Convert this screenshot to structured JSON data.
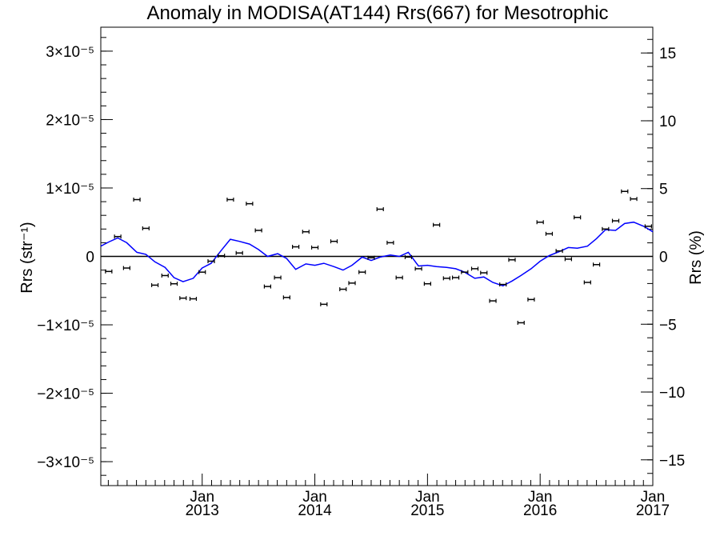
{
  "chart_data": {
    "type": "scatter",
    "title": "Anomaly in MODISA(AT144) Rrs(667) for Mesotrophic",
    "ylabel_left": "Rrs (str⁻¹)",
    "ylabel_right": "Rrs (%)",
    "y_left_ticks": [
      {
        "value": 3e-05,
        "label": "3×10⁻⁵"
      },
      {
        "value": 2e-05,
        "label": "2×10⁻⁵"
      },
      {
        "value": 1e-05,
        "label": "1×10⁻⁵"
      },
      {
        "value": 0,
        "label": "0"
      },
      {
        "value": -1e-05,
        "label": "−1×10⁻⁵"
      },
      {
        "value": -2e-05,
        "label": "−2×10⁻⁵"
      },
      {
        "value": -3e-05,
        "label": "−3×10⁻⁵"
      }
    ],
    "y_right_ticks": [
      {
        "value": 15,
        "label": "15"
      },
      {
        "value": 10,
        "label": "10"
      },
      {
        "value": 5,
        "label": "5"
      },
      {
        "value": 0,
        "label": "0"
      },
      {
        "value": -5,
        "label": "−5"
      },
      {
        "value": -10,
        "label": "−10"
      },
      {
        "value": -15,
        "label": "−15"
      }
    ],
    "x_ticks": [
      {
        "value": 2013.0,
        "month": "Jan",
        "year": "2013"
      },
      {
        "value": 2014.0,
        "month": "Jan",
        "year": "2014"
      },
      {
        "value": 2015.0,
        "month": "Jan",
        "year": "2015"
      },
      {
        "value": 2016.0,
        "month": "Jan",
        "year": "2016"
      },
      {
        "value": 2017.0,
        "month": "Jan",
        "year": "2017"
      }
    ],
    "xlim": [
      2012.1,
      2017.0
    ],
    "ylim_left": [
      -3.35e-05,
      3.35e-05
    ],
    "ylim_right": [
      -16.9,
      16.9
    ],
    "zero_line": true,
    "colors": {
      "points": "#000000",
      "line": "#0000ff"
    },
    "points": [
      {
        "x": 2012.17,
        "y": -2.2e-06
      },
      {
        "x": 2012.25,
        "y": 2.9e-06
      },
      {
        "x": 2012.33,
        "y": -1.7e-06
      },
      {
        "x": 2012.42,
        "y": 8.3e-06
      },
      {
        "x": 2012.5,
        "y": 4.1e-06
      },
      {
        "x": 2012.58,
        "y": -4.2e-06
      },
      {
        "x": 2012.67,
        "y": -2.8e-06
      },
      {
        "x": 2012.75,
        "y": -4e-06
      },
      {
        "x": 2012.83,
        "y": -6.1e-06
      },
      {
        "x": 2012.92,
        "y": -6.2e-06
      },
      {
        "x": 2013.0,
        "y": -2.3e-06
      },
      {
        "x": 2013.08,
        "y": -7e-07
      },
      {
        "x": 2013.17,
        "y": 1e-07
      },
      {
        "x": 2013.25,
        "y": 8.3e-06
      },
      {
        "x": 2013.33,
        "y": 5e-07
      },
      {
        "x": 2013.42,
        "y": 7.7e-06
      },
      {
        "x": 2013.5,
        "y": 3.8e-06
      },
      {
        "x": 2013.58,
        "y": -4.4e-06
      },
      {
        "x": 2013.67,
        "y": -3.1e-06
      },
      {
        "x": 2013.75,
        "y": -6e-06
      },
      {
        "x": 2013.83,
        "y": 1.4e-06
      },
      {
        "x": 2013.92,
        "y": 3.6e-06
      },
      {
        "x": 2014.0,
        "y": 1.3e-06
      },
      {
        "x": 2014.08,
        "y": -7e-06
      },
      {
        "x": 2014.17,
        "y": 2.2e-06
      },
      {
        "x": 2014.25,
        "y": -4.8e-06
      },
      {
        "x": 2014.33,
        "y": -3.9e-06
      },
      {
        "x": 2014.42,
        "y": -2.3e-06
      },
      {
        "x": 2014.5,
        "y": -2e-07
      },
      {
        "x": 2014.58,
        "y": 6.9e-06
      },
      {
        "x": 2014.67,
        "y": 2e-06
      },
      {
        "x": 2014.75,
        "y": -3.1e-06
      },
      {
        "x": 2014.83,
        "y": -1e-07
      },
      {
        "x": 2014.92,
        "y": -1.8e-06
      },
      {
        "x": 2015.0,
        "y": -4e-06
      },
      {
        "x": 2015.08,
        "y": 4.6e-06
      },
      {
        "x": 2015.17,
        "y": -3.2e-06
      },
      {
        "x": 2015.25,
        "y": -3.1e-06
      },
      {
        "x": 2015.33,
        "y": -2.3e-06
      },
      {
        "x": 2015.42,
        "y": -1.8e-06
      },
      {
        "x": 2015.5,
        "y": -2.4e-06
      },
      {
        "x": 2015.58,
        "y": -6.5e-06
      },
      {
        "x": 2015.67,
        "y": -4.1e-06
      },
      {
        "x": 2015.75,
        "y": -5e-07
      },
      {
        "x": 2015.83,
        "y": -9.7e-06
      },
      {
        "x": 2015.92,
        "y": -6.3e-06
      },
      {
        "x": 2016.0,
        "y": 5e-06
      },
      {
        "x": 2016.08,
        "y": 3.3e-06
      },
      {
        "x": 2016.17,
        "y": 8e-07
      },
      {
        "x": 2016.25,
        "y": -4e-07
      },
      {
        "x": 2016.33,
        "y": 5.7e-06
      },
      {
        "x": 2016.42,
        "y": -3.8e-06
      },
      {
        "x": 2016.5,
        "y": -1.2e-06
      },
      {
        "x": 2016.58,
        "y": 4e-06
      },
      {
        "x": 2016.67,
        "y": 5.2e-06
      },
      {
        "x": 2016.75,
        "y": 9.5e-06
      },
      {
        "x": 2016.83,
        "y": 8.4e-06
      },
      {
        "x": 2016.96,
        "y": 4.4e-06
      }
    ],
    "line": [
      {
        "x": 2012.1,
        "y": 1.5e-06
      },
      {
        "x": 2012.17,
        "y": 2.1e-06
      },
      {
        "x": 2012.25,
        "y": 2.7e-06
      },
      {
        "x": 2012.33,
        "y": 2e-06
      },
      {
        "x": 2012.42,
        "y": 6e-07
      },
      {
        "x": 2012.5,
        "y": 3e-07
      },
      {
        "x": 2012.58,
        "y": -8e-07
      },
      {
        "x": 2012.67,
        "y": -1.6e-06
      },
      {
        "x": 2012.75,
        "y": -3.1e-06
      },
      {
        "x": 2012.83,
        "y": -3.7e-06
      },
      {
        "x": 2012.92,
        "y": -3.2e-06
      },
      {
        "x": 2013.0,
        "y": -1.7e-06
      },
      {
        "x": 2013.08,
        "y": -1e-06
      },
      {
        "x": 2013.17,
        "y": 9e-07
      },
      {
        "x": 2013.25,
        "y": 2.5e-06
      },
      {
        "x": 2013.33,
        "y": 2.2e-06
      },
      {
        "x": 2013.42,
        "y": 1.8e-06
      },
      {
        "x": 2013.5,
        "y": 1e-06
      },
      {
        "x": 2013.58,
        "y": 0.0
      },
      {
        "x": 2013.67,
        "y": 4e-07
      },
      {
        "x": 2013.75,
        "y": -3e-07
      },
      {
        "x": 2013.83,
        "y": -1.9e-06
      },
      {
        "x": 2013.92,
        "y": -1.1e-06
      },
      {
        "x": 2014.0,
        "y": -1.3e-06
      },
      {
        "x": 2014.08,
        "y": -1e-06
      },
      {
        "x": 2014.17,
        "y": -1.5e-06
      },
      {
        "x": 2014.25,
        "y": -2e-06
      },
      {
        "x": 2014.33,
        "y": -1.3e-06
      },
      {
        "x": 2014.42,
        "y": -1e-07
      },
      {
        "x": 2014.5,
        "y": -6e-07
      },
      {
        "x": 2014.58,
        "y": -1e-07
      },
      {
        "x": 2014.67,
        "y": 2e-07
      },
      {
        "x": 2014.75,
        "y": 0.0
      },
      {
        "x": 2014.83,
        "y": 6e-07
      },
      {
        "x": 2014.92,
        "y": -1.4e-06
      },
      {
        "x": 2015.0,
        "y": -1.3e-06
      },
      {
        "x": 2015.08,
        "y": -1.5e-06
      },
      {
        "x": 2015.17,
        "y": -1.6e-06
      },
      {
        "x": 2015.25,
        "y": -1.8e-06
      },
      {
        "x": 2015.33,
        "y": -2.3e-06
      },
      {
        "x": 2015.42,
        "y": -3.2e-06
      },
      {
        "x": 2015.5,
        "y": -3e-06
      },
      {
        "x": 2015.58,
        "y": -3.8e-06
      },
      {
        "x": 2015.67,
        "y": -4.3e-06
      },
      {
        "x": 2015.75,
        "y": -3.6e-06
      },
      {
        "x": 2015.83,
        "y": -2.8e-06
      },
      {
        "x": 2015.92,
        "y": -1.8e-06
      },
      {
        "x": 2016.0,
        "y": -7e-07
      },
      {
        "x": 2016.08,
        "y": 1e-07
      },
      {
        "x": 2016.17,
        "y": 7e-07
      },
      {
        "x": 2016.25,
        "y": 1.3e-06
      },
      {
        "x": 2016.33,
        "y": 1.2e-06
      },
      {
        "x": 2016.42,
        "y": 1.5e-06
      },
      {
        "x": 2016.5,
        "y": 2.6e-06
      },
      {
        "x": 2016.58,
        "y": 3.9e-06
      },
      {
        "x": 2016.67,
        "y": 3.8e-06
      },
      {
        "x": 2016.75,
        "y": 4.8e-06
      },
      {
        "x": 2016.83,
        "y": 5e-06
      },
      {
        "x": 2016.92,
        "y": 4.4e-06
      },
      {
        "x": 2017.0,
        "y": 3.6e-06
      }
    ]
  }
}
